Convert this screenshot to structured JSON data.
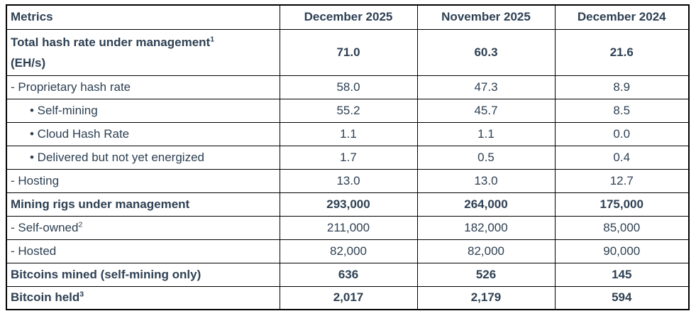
{
  "colors": {
    "text": "#2e4053",
    "border": "#000000",
    "background": "#ffffff"
  },
  "table": {
    "columns": [
      "Metrics",
      "December 2025",
      "November 2025",
      "December 2024"
    ],
    "rows": [
      {
        "label": "Total hash rate under management",
        "sup": "1",
        "line2": "(EH/s)",
        "bold": true,
        "indent": "none",
        "values": [
          "71.0",
          "60.3",
          "21.6"
        ]
      },
      {
        "label": "- Proprietary hash rate",
        "bold": false,
        "indent": "dash",
        "values": [
          "58.0",
          "47.3",
          "8.9"
        ]
      },
      {
        "label": "• Self-mining",
        "bold": false,
        "indent": "bullet",
        "values": [
          "55.2",
          "45.7",
          "8.5"
        ]
      },
      {
        "label": "• Cloud Hash Rate",
        "bold": false,
        "indent": "bullet",
        "values": [
          "1.1",
          "1.1",
          "0.0"
        ]
      },
      {
        "label": "• Delivered but not yet energized",
        "bold": false,
        "indent": "bullet",
        "values": [
          "1.7",
          "0.5",
          "0.4"
        ]
      },
      {
        "label": "- Hosting",
        "bold": false,
        "indent": "dash",
        "values": [
          "13.0",
          "13.0",
          "12.7"
        ]
      },
      {
        "label": "Mining rigs under management",
        "bold": true,
        "indent": "none",
        "values": [
          "293,000",
          "264,000",
          "175,000"
        ]
      },
      {
        "label": "- Self-owned",
        "sup": "2",
        "bold": false,
        "indent": "dash",
        "values": [
          "211,000",
          "182,000",
          "85,000"
        ]
      },
      {
        "label": "- Hosted",
        "bold": false,
        "indent": "dash",
        "values": [
          "82,000",
          "82,000",
          "90,000"
        ]
      },
      {
        "label": "Bitcoins mined (self-mining only)",
        "bold": true,
        "indent": "none",
        "values": [
          "636",
          "526",
          "145"
        ]
      },
      {
        "label": "Bitcoin held",
        "sup": "3",
        "bold": true,
        "indent": "none",
        "values": [
          "2,017",
          "2,179",
          "594"
        ]
      }
    ]
  }
}
